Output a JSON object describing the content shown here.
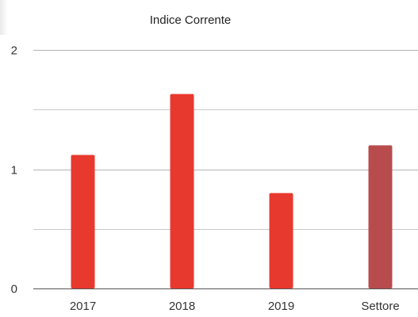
{
  "chart_data": {
    "type": "bar",
    "title": "Indice Corrente",
    "xlabel": "",
    "ylabel": "",
    "categories": [
      "2017",
      "2018",
      "2019",
      "Settore"
    ],
    "values": [
      1.12,
      1.63,
      0.8,
      1.2
    ],
    "bar_colors": [
      "#e8392e",
      "#e8392e",
      "#e8392e",
      "#b84c4c"
    ],
    "ylim": [
      0,
      2
    ],
    "yticks": [
      0,
      1,
      2
    ],
    "ytick_labels": [
      "0",
      "1",
      "2"
    ],
    "minor_grid": [
      0.5,
      1.5
    ],
    "grid": true,
    "legend": "none"
  }
}
